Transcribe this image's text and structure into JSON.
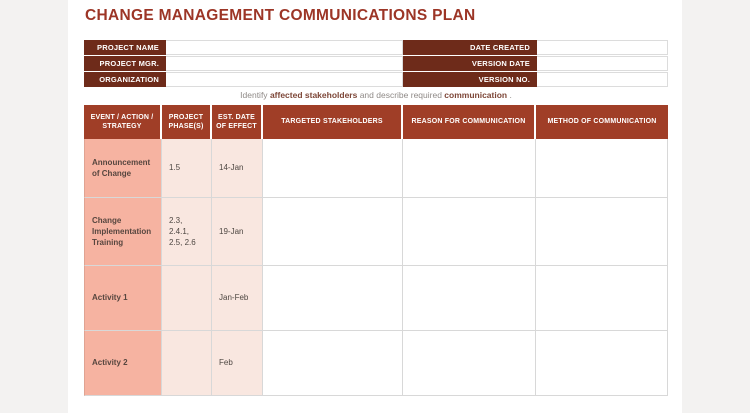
{
  "header": {
    "title": "CHANGE MANAGEMENT COMMUNICATIONS PLAN"
  },
  "info": {
    "left": [
      {
        "label": "PROJECT NAME",
        "value": ""
      },
      {
        "label": "PROJECT MGR.",
        "value": ""
      },
      {
        "label": "ORGANIZATION",
        "value": ""
      }
    ],
    "right": [
      {
        "label": "DATE CREATED",
        "value": ""
      },
      {
        "label": "VERSION DATE",
        "value": ""
      },
      {
        "label": "VERSION NO.",
        "value": ""
      }
    ]
  },
  "instruction": {
    "seg_normal_1": "Identify ",
    "seg_bold_1": "affected stakeholders",
    "seg_normal_2": " and describe required ",
    "seg_bold_2": "communication",
    "seg_normal_3": " ."
  },
  "table": {
    "headers": [
      "EVENT / ACTION / STRATEGY",
      "PROJECT PHASE(S)",
      "EST. DATE OF EFFECT",
      "TARGETED STAKEHOLDERS",
      "REASON FOR COMMUNICATION",
      "METHOD OF COMMUNICATION"
    ],
    "rows": [
      {
        "event": "Announcement of Change",
        "phases": "1.5",
        "date": "14-Jan",
        "stakeholders": "",
        "reason": "",
        "method": ""
      },
      {
        "event": "Change Implementation Training",
        "phases": "2.3, 2.4.1, 2.5, 2.6",
        "date": "19-Jan",
        "stakeholders": "",
        "reason": "",
        "method": ""
      },
      {
        "event": "Activity 1",
        "phases": "",
        "date": "Jan-Feb",
        "stakeholders": "",
        "reason": "",
        "method": ""
      },
      {
        "event": "Activity 2",
        "phases": "",
        "date": "Feb",
        "stakeholders": "",
        "reason": "",
        "method": ""
      }
    ]
  },
  "colors": {
    "info_label_bg": "#6e2b1a",
    "table_header_bg": "#a03e27",
    "event_column_bg": "#f6b3a1",
    "phase_date_bg": "#f9e7e0",
    "title_text": "#9c3526",
    "page_bg": "#ffffff",
    "canvas_bg": "#f3f2f1"
  }
}
